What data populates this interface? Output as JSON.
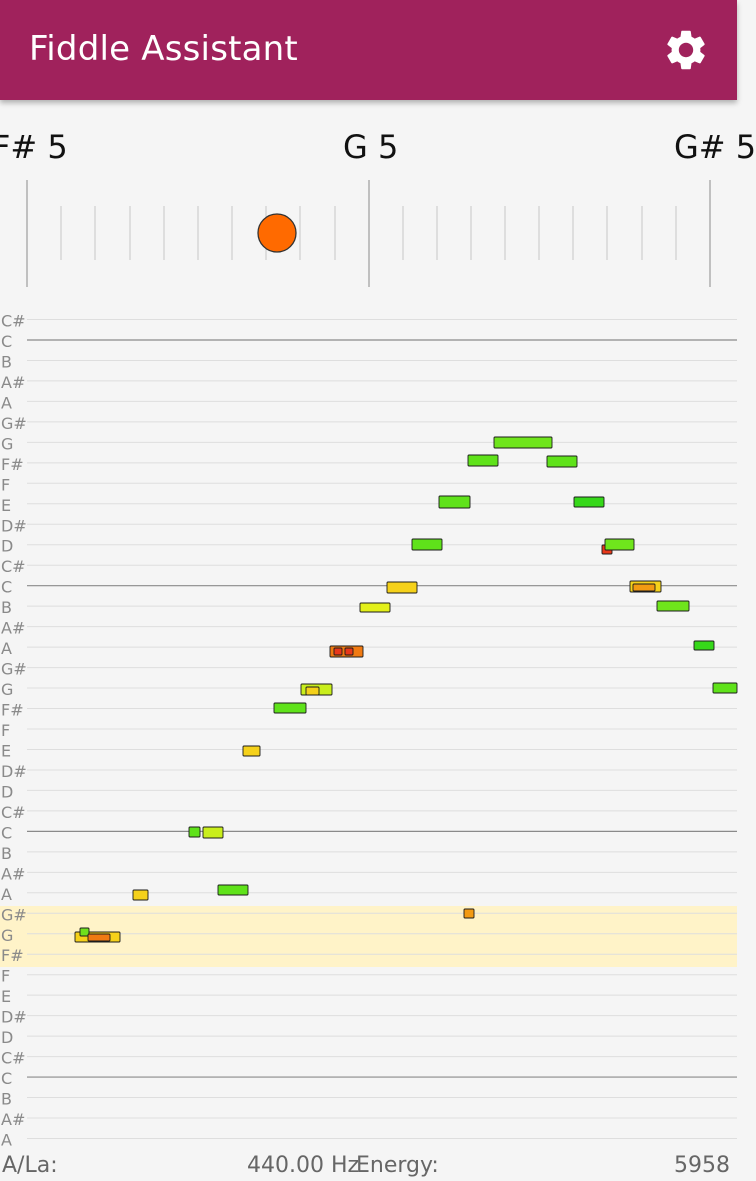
{
  "app": {
    "title": "Fiddle Assistant",
    "accent_color": "#a0225c",
    "settings_icon": "gear-icon"
  },
  "tuner": {
    "left_note": "F# 5",
    "center_note": "G 5",
    "right_note": "G# 5",
    "indicator_color": "#ff6a00"
  },
  "roll": {
    "note_labels": [
      "C#",
      "C",
      "B",
      "A#",
      "A",
      "G#",
      "G",
      "F#",
      "F",
      "E",
      "D#",
      "D",
      "C#",
      "C",
      "B",
      "A#",
      "A",
      "G#",
      "G",
      "F#",
      "F",
      "E",
      "D#",
      "D",
      "C#",
      "C",
      "B",
      "A#",
      "A",
      "G#",
      "G",
      "F#",
      "F",
      "E",
      "D#",
      "D",
      "C#",
      "C",
      "B",
      "A#",
      "A"
    ],
    "highlight_color": "#fff3c8"
  },
  "footer": {
    "a_la_label": "A/La:",
    "frequency": "440.00 Hz",
    "energy_label": "Energy:",
    "energy_value": "5958"
  }
}
